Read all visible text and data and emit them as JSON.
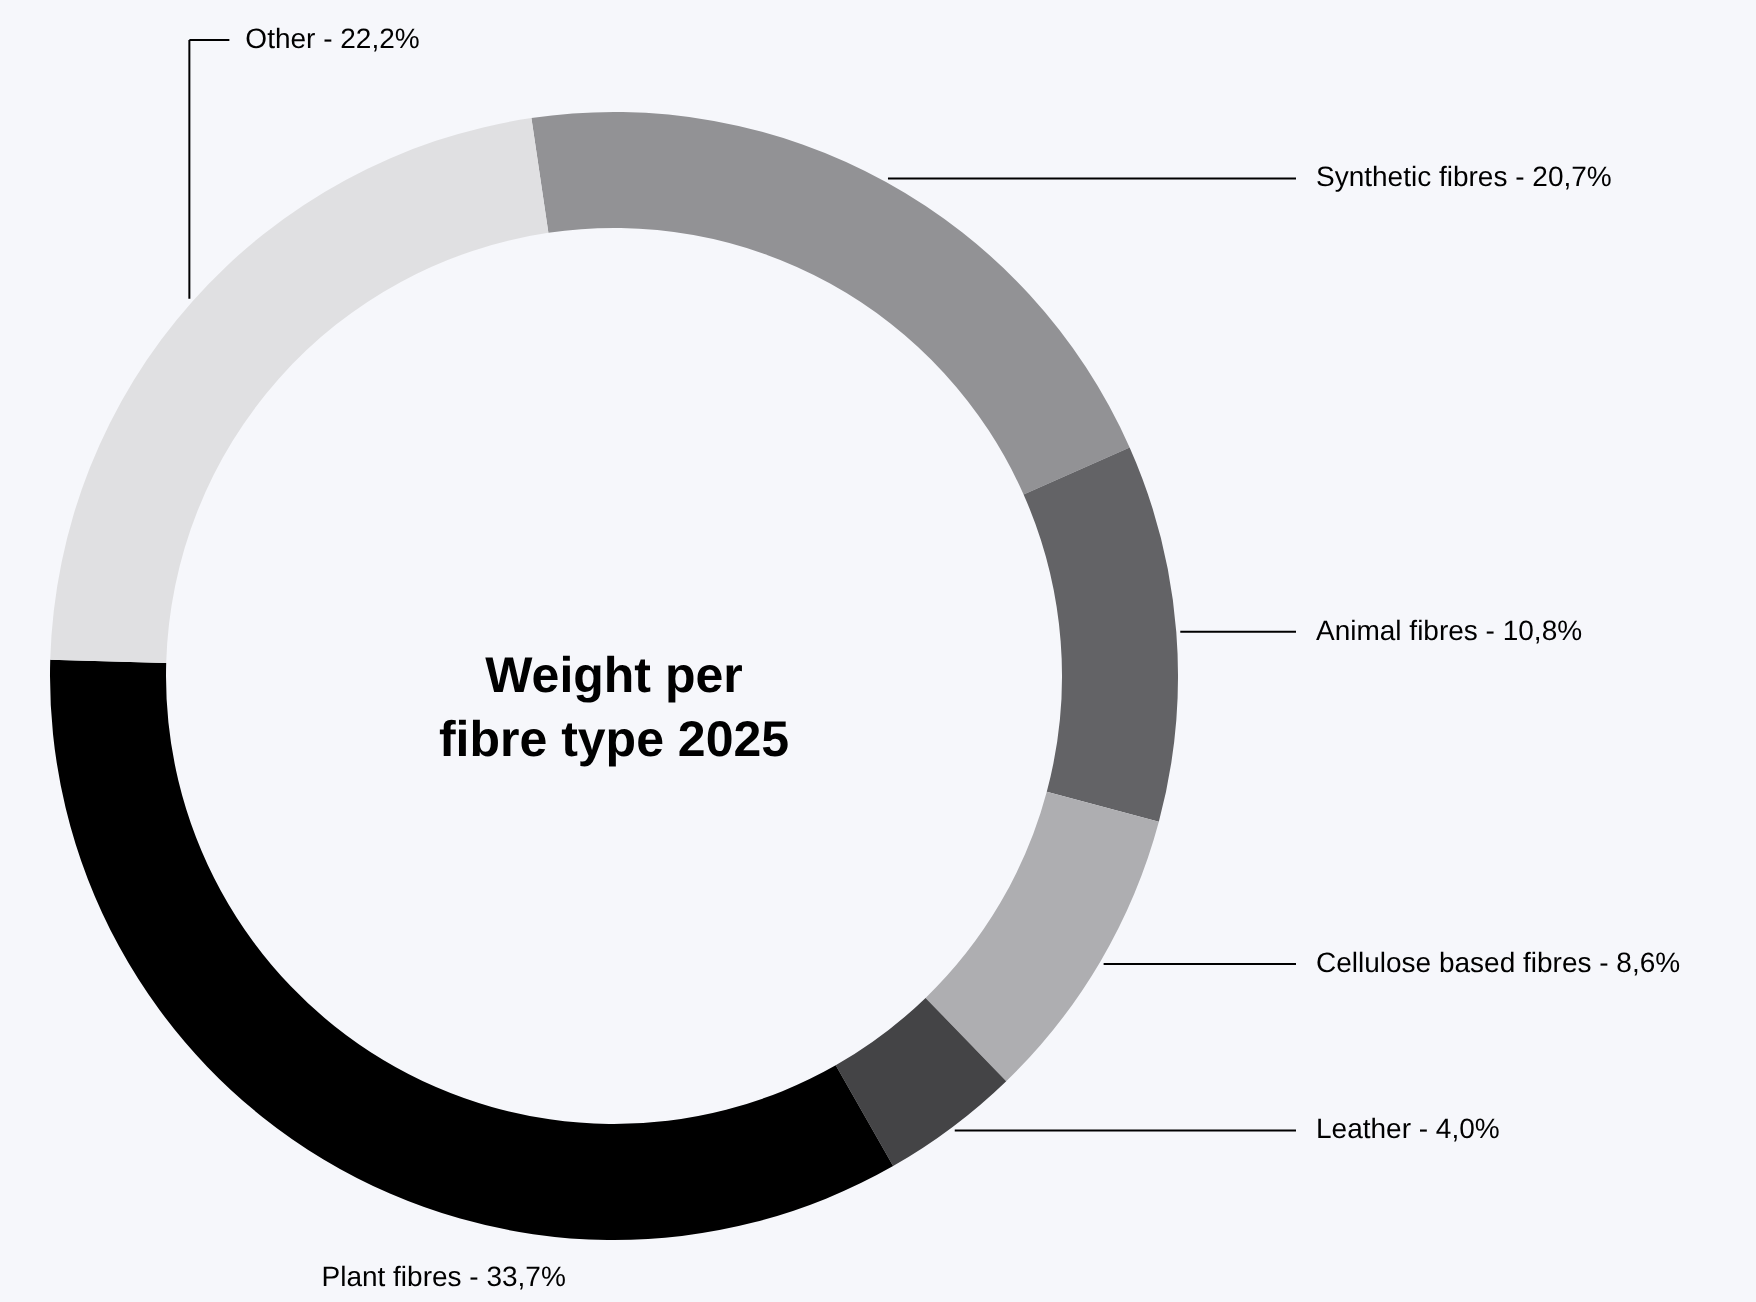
{
  "chart_data": {
    "type": "donut",
    "title": "Weight per\nfibre type 2025",
    "categories": [
      "Synthetic fibres",
      "Animal fibres",
      "Cellulose based fibres",
      "Leather",
      "Plant fibres",
      "Other"
    ],
    "values": [
      20.7,
      10.8,
      8.6,
      4.0,
      33.7,
      22.2
    ],
    "value_labels": [
      "20,7%",
      "10,8%",
      "8,6%",
      "4,0%",
      "33,7%",
      "22,2%"
    ],
    "colors": [
      "#929295",
      "#636366",
      "#aeaeb1",
      "#444446",
      "#000000",
      "#e0e0e2"
    ]
  }
}
